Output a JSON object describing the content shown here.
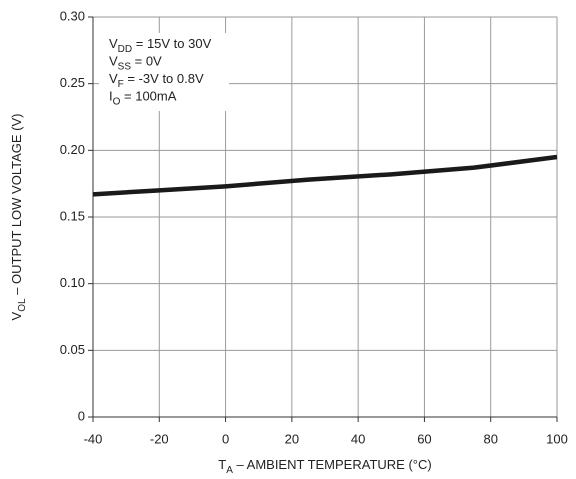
{
  "chart_data": {
    "type": "line",
    "x_label": {
      "symbol": "T",
      "subscript": "A",
      "text": " – AMBIENT TEMPERATURE (°C)"
    },
    "y_label": {
      "symbol": "V",
      "subscript": "OL",
      "text": " – OUTPUT LOW VOLTAGE (V)"
    },
    "annotation": [
      {
        "symbol": "V",
        "subscript": "DD",
        "text": " = 15V to 30V"
      },
      {
        "symbol": "V",
        "subscript": "SS",
        "text": " = 0V"
      },
      {
        "symbol": "V",
        "subscript": "F",
        "text": " = -3V to 0.8V"
      },
      {
        "symbol": "I",
        "subscript": "O",
        "text": " = 100mA"
      }
    ],
    "x": [
      -40,
      -20,
      0,
      25,
      50,
      75,
      100
    ],
    "series": [
      {
        "color": "#1a1a1a",
        "values": [
          0.167,
          0.17,
          0.173,
          0.178,
          0.182,
          0.187,
          0.195
        ]
      }
    ],
    "xlim": [
      -40,
      100
    ],
    "xticks": [
      -40,
      -20,
      0,
      20,
      40,
      60,
      80,
      100
    ],
    "ylim": [
      0,
      0.3
    ],
    "yticks": [
      0,
      {
        "value": 0.05,
        "label": "0.05"
      },
      {
        "value": 0.1,
        "label": "0.10"
      },
      0.15,
      {
        "value": 0.2,
        "label": "0.20"
      },
      0.25,
      {
        "value": 0.3,
        "label": "0.30"
      }
    ],
    "grid": true
  }
}
